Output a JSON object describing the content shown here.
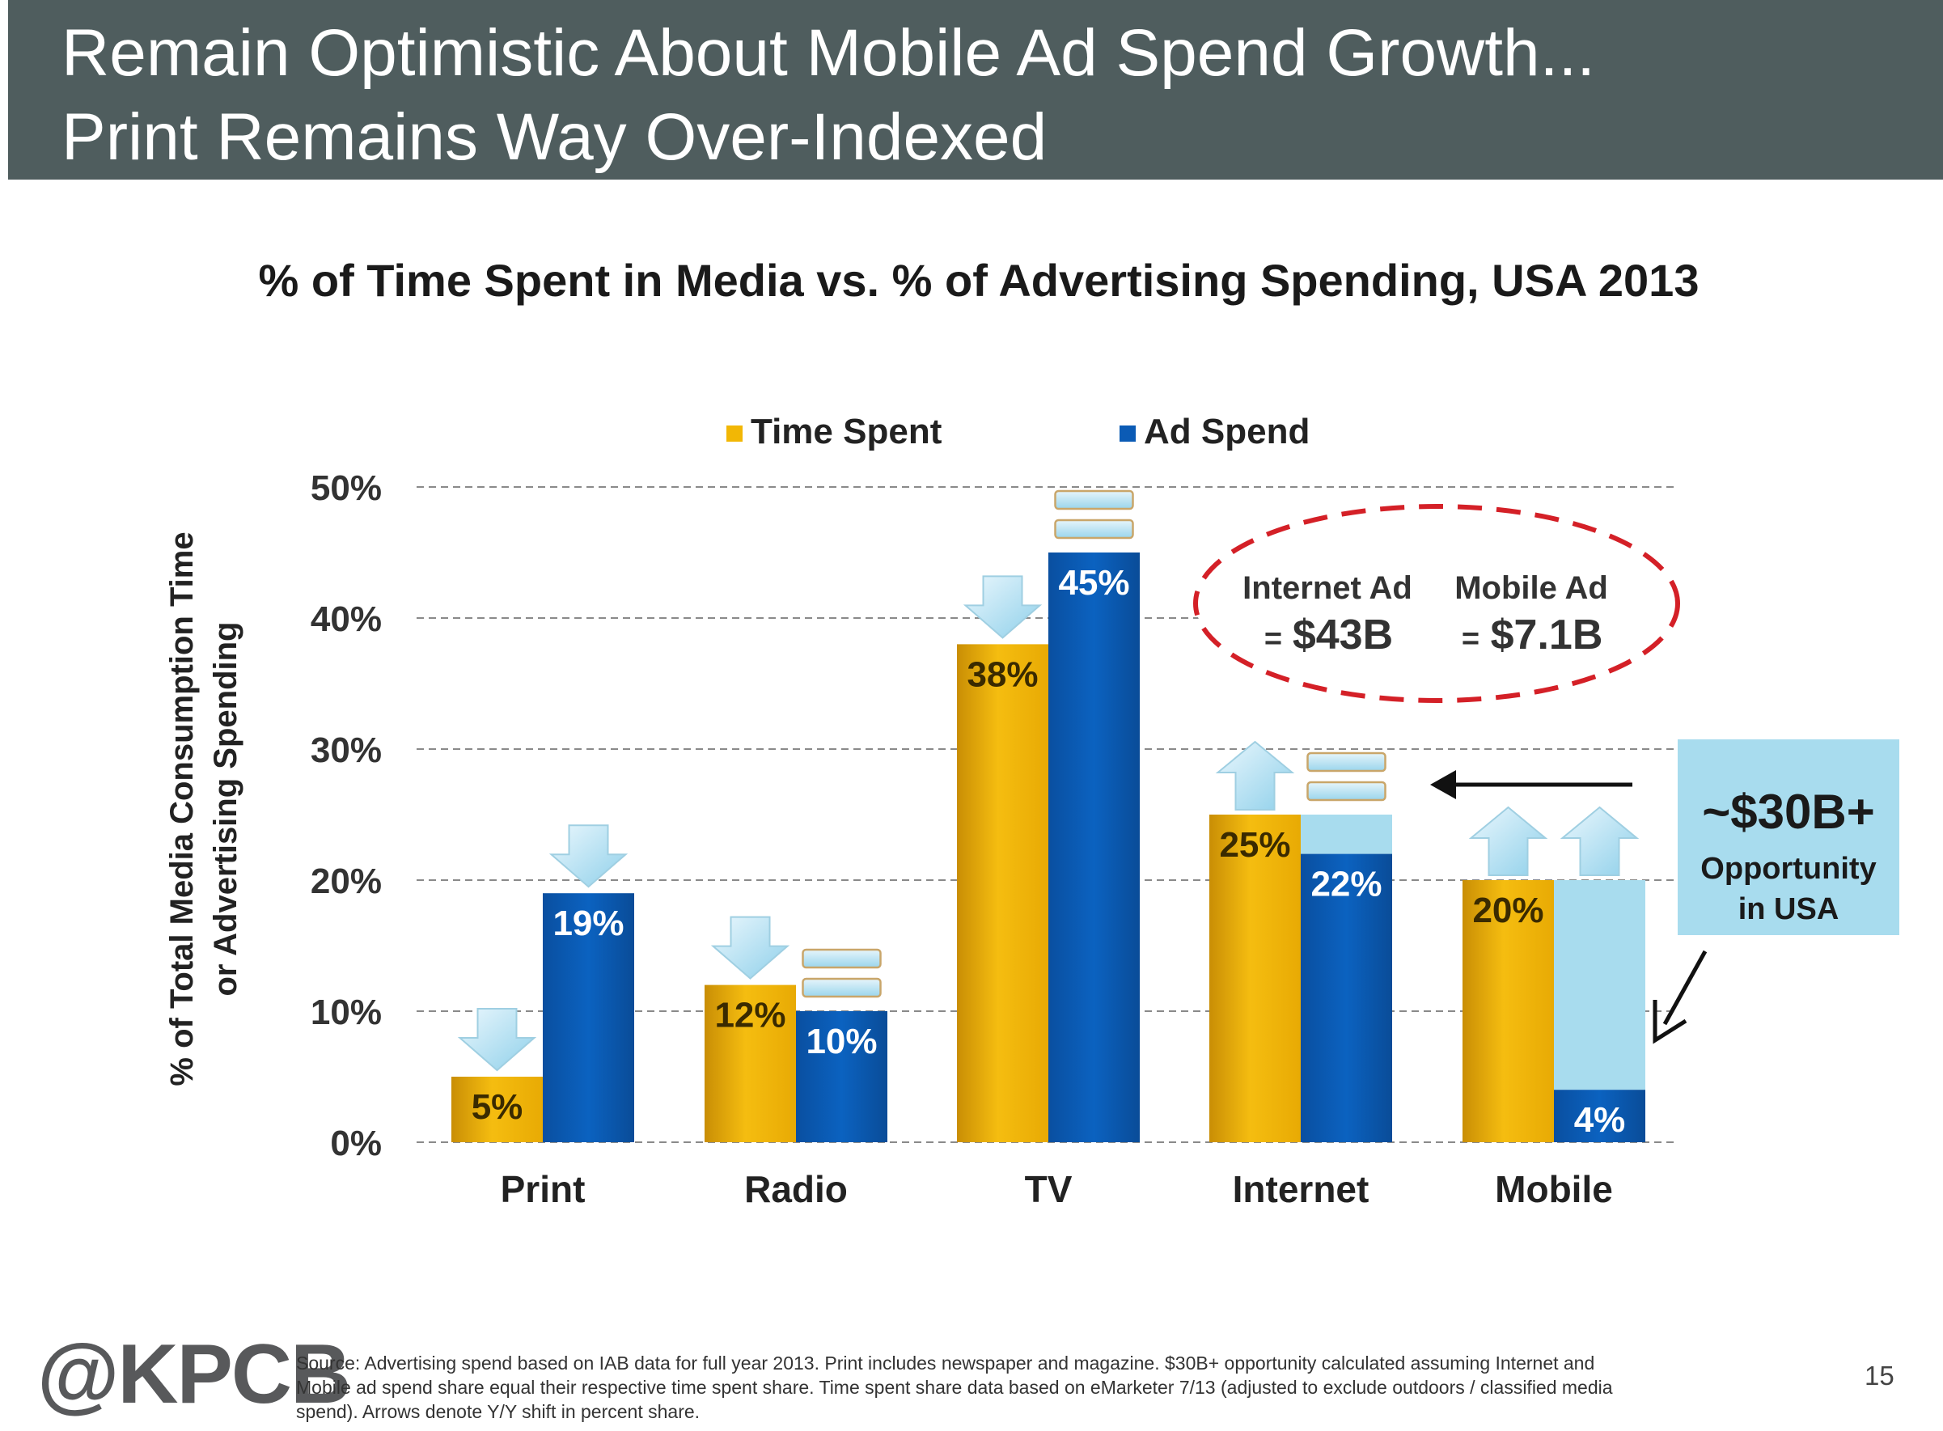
{
  "header": {
    "line1": "Remain Optimistic About Mobile Ad Spend Growth...",
    "line2": "Print Remains Way Over-Indexed"
  },
  "chart_data": {
    "type": "bar",
    "title": "% of Time Spent in Media vs. % of Advertising Spending, USA 2013",
    "ylabel": [
      "% of Total Media Consumption Time",
      "or Advertising Spending"
    ],
    "xlabel": "",
    "ylim": [
      0,
      50
    ],
    "yticks": [
      "0%",
      "10%",
      "20%",
      "30%",
      "40%",
      "50%"
    ],
    "categories": [
      "Print",
      "Radio",
      "TV",
      "Internet",
      "Mobile"
    ],
    "series": [
      {
        "name": "Time Spent",
        "color": "#f2b705",
        "values": [
          5,
          12,
          38,
          25,
          20
        ],
        "labels": [
          "5%",
          "12%",
          "38%",
          "25%",
          "20%"
        ]
      },
      {
        "name": "Ad Spend",
        "color": "#0b5bb5",
        "values": [
          19,
          10,
          45,
          22,
          4
        ],
        "labels": [
          "19%",
          "10%",
          "45%",
          "22%",
          "4%"
        ]
      }
    ],
    "opportunity_gap": {
      "color": "#a8dcee",
      "categories": [
        "Internet",
        "Mobile"
      ],
      "targets": [
        25,
        20
      ]
    },
    "yoy_markers": {
      "Time Spent": [
        "down",
        "down",
        "down",
        "up",
        "up"
      ],
      "Ad Spend": [
        "down",
        "equal",
        "equal",
        "equal",
        "up"
      ]
    },
    "legend": "top",
    "grid": true,
    "annotations": {
      "internet_ad_label": "Internet Ad",
      "internet_ad_value": "$43B",
      "mobile_ad_label": "Mobile Ad",
      "mobile_ad_value": "$7.1B",
      "equals": "=",
      "opportunity_value": "~$30B+",
      "opportunity_line1": "Opportunity",
      "opportunity_line2": "in USA"
    }
  },
  "footer": {
    "logo": "@KPCB",
    "source_lines": [
      "Source: Advertising spend based on IAB data for full year 2013. Print includes newspaper and magazine. $30B+ opportunity calculated assuming Internet and",
      "Mobile ad spend share equal their respective time spent share. Time spent share data based on eMarketer 7/13 (adjusted to exclude outdoors / classified media",
      "spend). Arrows denote Y/Y shift in percent share."
    ],
    "page": "15"
  }
}
